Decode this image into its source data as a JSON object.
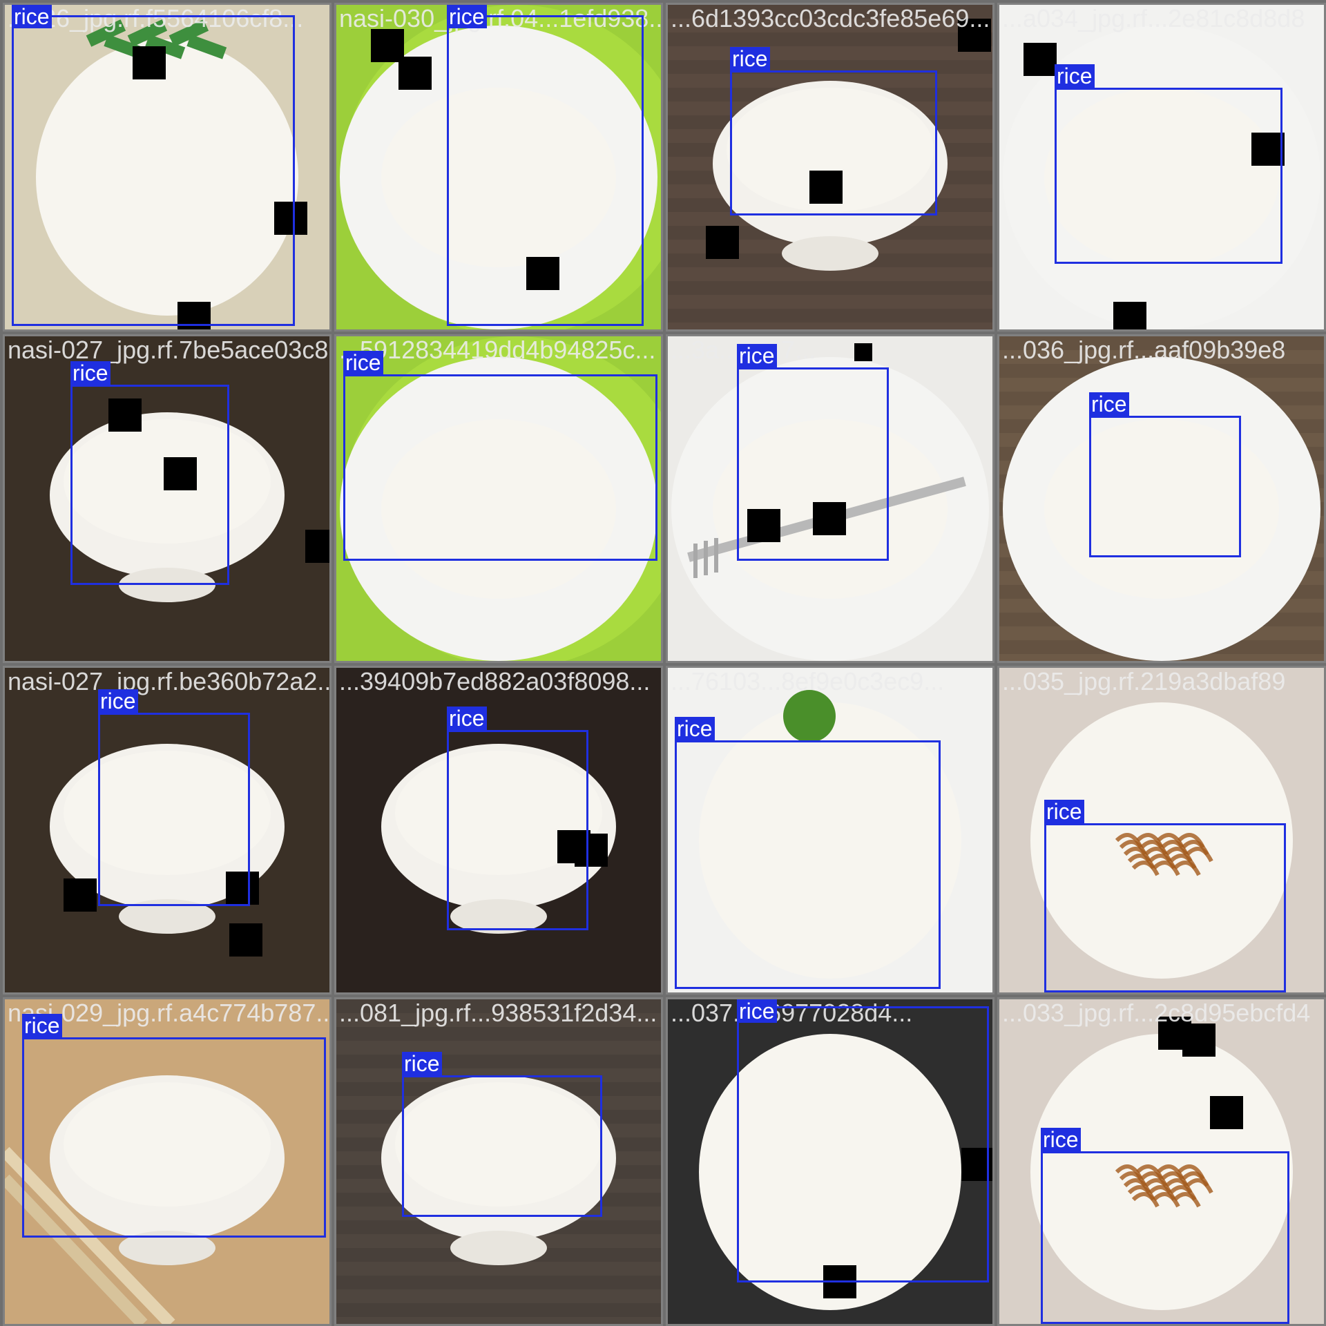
{
  "tiles": [
    {
      "filename": "...026_jpg.rf.f5564106cf8...",
      "scene": "rice-mound-green-onion",
      "bg": "#d8d0b8",
      "boxes": [
        {
          "label": "rice"
        }
      ]
    },
    {
      "filename": "nasi-030_jpg.rf.04...1efd938...",
      "scene": "rice-leaf-on-green-plate",
      "bg": "#9ccf3a",
      "boxes": [
        {
          "label": "rice"
        }
      ]
    },
    {
      "filename": "...6d1393cc03cdc3fe85e69...",
      "scene": "rice-bowl-wood",
      "bg": "#5a4a40",
      "boxes": [
        {
          "label": "rice"
        }
      ]
    },
    {
      "filename": "...a034_jpg.rf...2e81c8d8d8",
      "scene": "rice-plate-herbs",
      "bg": "#f2f2f0",
      "boxes": [
        {
          "label": "rice"
        }
      ]
    },
    {
      "filename": "nasi-027_jpg.rf.7be5ace03c8...",
      "scene": "rice-bowl-tilted",
      "bg": "#3a3026",
      "boxes": [
        {
          "label": "rice"
        }
      ]
    },
    {
      "filename": "...5912834419dd4b94825c...",
      "scene": "rice-on-green-plate-wide",
      "bg": "#9ccf3a",
      "boxes": [
        {
          "label": "rice"
        }
      ]
    },
    {
      "filename": "...3a...5897...",
      "scene": "rice-plate-fork",
      "bg": "#ecebe8",
      "boxes": [
        {
          "label": "rice"
        }
      ]
    },
    {
      "filename": "...036_jpg.rf...aaf09b39e8",
      "scene": "rice-wood-plate",
      "bg": "#6d5a47",
      "boxes": [
        {
          "label": "rice"
        }
      ]
    },
    {
      "filename": "nasi-027_jpg.rf.be360b72a2...",
      "scene": "rice-bowl-tilted-2",
      "bg": "#3a3026",
      "boxes": [
        {
          "label": "rice"
        }
      ]
    },
    {
      "filename": "...39409b7ed882a03f8098...",
      "scene": "rice-dark-bowl",
      "bg": "#2a221e",
      "boxes": [
        {
          "label": "rice"
        }
      ]
    },
    {
      "filename": "...76103...8ef9e0c3ec9...",
      "scene": "rice-dome-garnish",
      "bg": "#f2f2f0",
      "boxes": [
        {
          "label": "rice"
        }
      ]
    },
    {
      "filename": "...035_jpg.rf.219a3dbaf89",
      "scene": "rice-fried-onion",
      "bg": "#d9d0c8",
      "boxes": [
        {
          "label": "rice"
        }
      ]
    },
    {
      "filename": "nasi-029_jpg.rf.a4c774b787...",
      "scene": "rice-bowl-chopsticks",
      "bg": "#caa77a",
      "boxes": [
        {
          "label": "rice"
        }
      ]
    },
    {
      "filename": "...081_jpg.rf...938531f2d34...",
      "scene": "rice-bowl-wood-2",
      "bg": "#4f463f",
      "boxes": [
        {
          "label": "rice"
        }
      ]
    },
    {
      "filename": "...037...96977028d4...",
      "scene": "rice-dome-dark",
      "bg": "#2e2e2e",
      "boxes": [
        {
          "label": "rice"
        }
      ]
    },
    {
      "filename": "...033_jpg.rf...2c8d95ebcfd4",
      "scene": "rice-fried-onion-2",
      "bg": "#d9d0c8",
      "boxes": [
        {
          "label": "rice"
        }
      ]
    }
  ]
}
